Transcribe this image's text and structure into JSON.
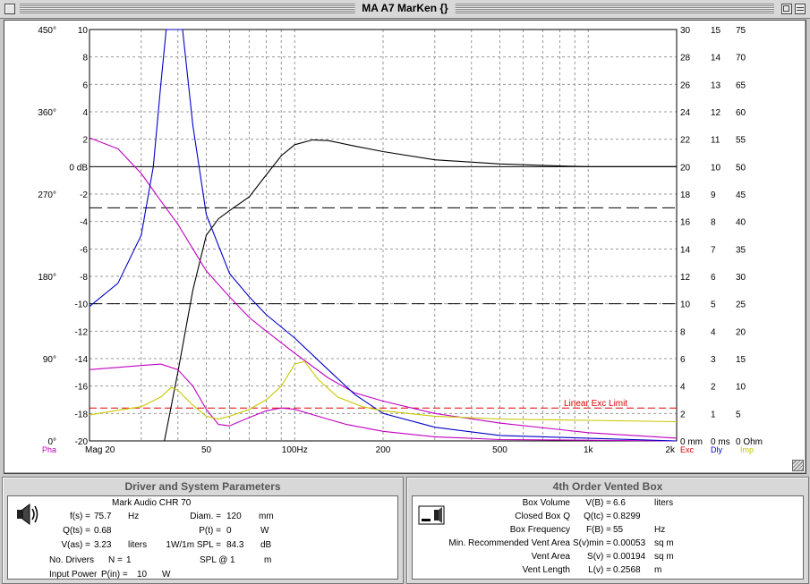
{
  "window": {
    "title": "MA A7 MarKen {}"
  },
  "colors": {
    "phase": "#c000c0",
    "excursion": "#d00000",
    "delay": "#0000c8",
    "impedance": "#c8c800",
    "response": "#000000",
    "limit": "#e00000"
  },
  "graph": {
    "left_ticks": [
      {
        "label": "10",
        "ylevel": 10
      },
      {
        "label": "8",
        "ylevel": 8
      },
      {
        "label": "6",
        "ylevel": 6
      },
      {
        "label": "4",
        "ylevel": 4
      },
      {
        "label": "2",
        "ylevel": 2
      },
      {
        "label": "0 dB",
        "ylevel": 0
      },
      {
        "label": "-2",
        "ylevel": -2
      },
      {
        "label": "-4",
        "ylevel": -4
      },
      {
        "label": "-6",
        "ylevel": -6
      },
      {
        "label": "-8",
        "ylevel": -8
      },
      {
        "label": "-10",
        "ylevel": -10
      },
      {
        "label": "-12",
        "ylevel": -12
      },
      {
        "label": "-14",
        "ylevel": -14
      },
      {
        "label": "-16",
        "ylevel": -16
      },
      {
        "label": "-18",
        "ylevel": -18
      },
      {
        "label": "-20",
        "ylevel": -20
      }
    ],
    "phase_ticks": [
      {
        "label": "450°",
        "ylevel": 10
      },
      {
        "label": "360°",
        "ylevel": 4
      },
      {
        "label": "270°",
        "ylevel": -2
      },
      {
        "label": "180°",
        "ylevel": -8
      },
      {
        "label": "90°",
        "ylevel": -14
      },
      {
        "label": "0°",
        "ylevel": -20
      }
    ],
    "right_col1": [
      {
        "label": "30",
        "ylevel": 10
      },
      {
        "label": "28",
        "ylevel": 8
      },
      {
        "label": "26",
        "ylevel": 6
      },
      {
        "label": "24",
        "ylevel": 4
      },
      {
        "label": "22",
        "ylevel": 2
      },
      {
        "label": "20",
        "ylevel": 0
      },
      {
        "label": "18",
        "ylevel": -2
      },
      {
        "label": "16",
        "ylevel": -4
      },
      {
        "label": "14",
        "ylevel": -6
      },
      {
        "label": "12",
        "ylevel": -8
      },
      {
        "label": "10",
        "ylevel": -10
      },
      {
        "label": "8",
        "ylevel": -12
      },
      {
        "label": "6",
        "ylevel": -14
      },
      {
        "label": "4",
        "ylevel": -16
      },
      {
        "label": "2",
        "ylevel": -18
      },
      {
        "label": "0 mm",
        "ylevel": -20
      }
    ],
    "right_col2": [
      {
        "label": "15",
        "ylevel": 10
      },
      {
        "label": "14",
        "ylevel": 8
      },
      {
        "label": "13",
        "ylevel": 6
      },
      {
        "label": "12",
        "ylevel": 4
      },
      {
        "label": "11",
        "ylevel": 2
      },
      {
        "label": "10",
        "ylevel": 0
      },
      {
        "label": "9",
        "ylevel": -2
      },
      {
        "label": "8",
        "ylevel": -4
      },
      {
        "label": "7",
        "ylevel": -6
      },
      {
        "label": "6",
        "ylevel": -8
      },
      {
        "label": "5",
        "ylevel": -10
      },
      {
        "label": "4",
        "ylevel": -12
      },
      {
        "label": "3",
        "ylevel": -14
      },
      {
        "label": "2",
        "ylevel": -16
      },
      {
        "label": "1",
        "ylevel": -18
      },
      {
        "label": "0 ms",
        "ylevel": -20
      }
    ],
    "right_col3": [
      {
        "label": "75",
        "ylevel": 10
      },
      {
        "label": "70",
        "ylevel": 8
      },
      {
        "label": "65",
        "ylevel": 6
      },
      {
        "label": "60",
        "ylevel": 4
      },
      {
        "label": "55",
        "ylevel": 2
      },
      {
        "label": "50",
        "ylevel": 0
      },
      {
        "label": "45",
        "ylevel": -2
      },
      {
        "label": "40",
        "ylevel": -4
      },
      {
        "label": "35",
        "ylevel": -6
      },
      {
        "label": "30",
        "ylevel": -8
      },
      {
        "label": "25",
        "ylevel": -10
      },
      {
        "label": "20",
        "ylevel": -12
      },
      {
        "label": "15",
        "ylevel": -14
      },
      {
        "label": "10",
        "ylevel": -16
      },
      {
        "label": "5",
        "ylevel": -18
      },
      {
        "label": "0 Ohm",
        "ylevel": -20
      }
    ],
    "x_ticks": [
      {
        "label": "Mag 20",
        "freq": 20
      },
      {
        "label": "50",
        "freq": 50
      },
      {
        "label": "100Hz",
        "freq": 100
      },
      {
        "label": "200",
        "freq": 200
      },
      {
        "label": "500",
        "freq": 500
      },
      {
        "label": "1k",
        "freq": 1000
      },
      {
        "label": "2k",
        "freq": 2000
      }
    ],
    "x_range": [
      20,
      2000
    ],
    "y_range": [
      -20,
      10
    ],
    "grid_freqs": [
      30,
      40,
      50,
      60,
      70,
      80,
      90,
      100,
      200,
      300,
      400,
      500,
      600,
      700,
      800,
      900,
      1000
    ],
    "legend": {
      "pha": "Pha",
      "exc": "Exc",
      "dly": "Dly",
      "imp": "Imp"
    },
    "limit_label": "Linear Exc Limit",
    "limit_level": -17.6,
    "dashed_levels": [
      -3,
      -10
    ]
  },
  "chart_data": {
    "type": "line",
    "x_scale": "log",
    "xlim": [
      20,
      2000
    ],
    "ylim": [
      -20,
      10
    ],
    "series": [
      {
        "name": "Mag",
        "color": "#000000",
        "points": [
          [
            36,
            -20
          ],
          [
            40,
            -15
          ],
          [
            45,
            -9
          ],
          [
            50,
            -5
          ],
          [
            55,
            -3.8
          ],
          [
            60,
            -3.2
          ],
          [
            70,
            -2.2
          ],
          [
            80,
            -0.6
          ],
          [
            90,
            0.8
          ],
          [
            100,
            1.6
          ],
          [
            115,
            1.95
          ],
          [
            130,
            1.9
          ],
          [
            160,
            1.5
          ],
          [
            200,
            1.1
          ],
          [
            300,
            0.5
          ],
          [
            500,
            0.2
          ],
          [
            800,
            0.05
          ],
          [
            1000,
            0
          ],
          [
            2000,
            0
          ]
        ]
      },
      {
        "name": "Pha",
        "color": "#c000c0",
        "points": [
          [
            20,
            2.1
          ],
          [
            25,
            1.3
          ],
          [
            30,
            -0.5
          ],
          [
            35,
            -2.5
          ],
          [
            40,
            -4.2
          ],
          [
            45,
            -6
          ],
          [
            50,
            -7.6
          ],
          [
            60,
            -9.5
          ],
          [
            70,
            -11
          ],
          [
            80,
            -12
          ],
          [
            100,
            -13.6
          ],
          [
            130,
            -15.4
          ],
          [
            160,
            -16.5
          ],
          [
            200,
            -17.1
          ],
          [
            300,
            -18
          ],
          [
            500,
            -18.7
          ],
          [
            1000,
            -19.4
          ],
          [
            2000,
            -19.8
          ]
        ]
      },
      {
        "name": "Exc",
        "color": "#c000c0",
        "points": [
          [
            20,
            -14.8
          ],
          [
            30,
            -14.5
          ],
          [
            35,
            -14.4
          ],
          [
            40,
            -14.8
          ],
          [
            45,
            -16
          ],
          [
            50,
            -17.7
          ],
          [
            55,
            -18.8
          ],
          [
            60,
            -18.9
          ],
          [
            70,
            -18.3
          ],
          [
            80,
            -17.8
          ],
          [
            90,
            -17.6
          ],
          [
            100,
            -17.7
          ],
          [
            120,
            -18.2
          ],
          [
            150,
            -18.8
          ],
          [
            200,
            -19.3
          ],
          [
            300,
            -19.7
          ],
          [
            500,
            -19.9
          ],
          [
            2000,
            -20
          ]
        ]
      },
      {
        "name": "Dly",
        "color": "#0000c8",
        "points": [
          [
            20,
            -10.2
          ],
          [
            25,
            -8.5
          ],
          [
            30,
            -5
          ],
          [
            33,
            0
          ],
          [
            35,
            6
          ],
          [
            36.5,
            10
          ],
          [
            41.5,
            10
          ],
          [
            45,
            3
          ],
          [
            50,
            -3.5
          ],
          [
            60,
            -7.8
          ],
          [
            70,
            -9.5
          ],
          [
            80,
            -10.8
          ],
          [
            100,
            -12.5
          ],
          [
            130,
            -14.8
          ],
          [
            160,
            -16.6
          ],
          [
            200,
            -18
          ],
          [
            300,
            -19
          ],
          [
            500,
            -19.6
          ],
          [
            2000,
            -20
          ]
        ]
      },
      {
        "name": "Imp",
        "color": "#c8c800",
        "points": [
          [
            20,
            -18.1
          ],
          [
            30,
            -17.5
          ],
          [
            35,
            -16.8
          ],
          [
            38,
            -16.1
          ],
          [
            40,
            -16.3
          ],
          [
            45,
            -17.4
          ],
          [
            50,
            -18.2
          ],
          [
            55,
            -18.4
          ],
          [
            60,
            -18.2
          ],
          [
            70,
            -17.7
          ],
          [
            80,
            -17
          ],
          [
            90,
            -16
          ],
          [
            100,
            -14.4
          ],
          [
            108,
            -14.2
          ],
          [
            120,
            -15.5
          ],
          [
            140,
            -16.8
          ],
          [
            170,
            -17.5
          ],
          [
            200,
            -17.8
          ],
          [
            300,
            -18.2
          ],
          [
            500,
            -18.4
          ],
          [
            1000,
            -18.5
          ],
          [
            2000,
            -18.6
          ]
        ]
      }
    ]
  },
  "driver_panel": {
    "title": "Driver and System Parameters",
    "driver_name": "Mark Audio CHR 70",
    "fs_label": "f(s) =",
    "fs_value": "75.7",
    "fs_unit": "Hz",
    "qs_label": "Q(ts) =",
    "qs_value": "0.68",
    "vas_label": "V(as) =",
    "vas_value": "3.23",
    "vas_unit": "liters",
    "diam_label": "Diam. =",
    "diam_value": "120",
    "diam_unit": "mm",
    "pt_label": "P(t) =",
    "pt_value": "0",
    "pt_unit": "W",
    "spl_label": "1W/1m SPL =",
    "spl_value": "84.3",
    "spl_unit": "dB",
    "nd_label": "No. Drivers",
    "nd_eq": "N =",
    "nd_value": "1",
    "splat_label": "SPL @",
    "splat_value": "1",
    "splat_unit": "m",
    "ip_label": "Input Power",
    "ip_eq": "P(in) =",
    "ip_value": "10",
    "ip_unit": "W"
  },
  "box_panel": {
    "title": "4th Order Vented Box",
    "rows": [
      {
        "label": "Box Volume",
        "sym": "V(B) =",
        "value": "6.6",
        "unit": "liters"
      },
      {
        "label": "Closed Box Q",
        "sym": "Q(tc) =",
        "value": "0.8299",
        "unit": ""
      },
      {
        "label": "Box Frequency",
        "sym": "F(B) =",
        "value": "55",
        "unit": "Hz"
      },
      {
        "label": "Min. Recommended Vent Area",
        "sym": "S(v)min =",
        "value": "0.00053",
        "unit": "sq m"
      },
      {
        "label": "Vent Area",
        "sym": "S(v) =",
        "value": "0.00194",
        "unit": "sq m"
      },
      {
        "label": "Vent Length",
        "sym": "L(v) =",
        "value": "0.2568",
        "unit": "m"
      }
    ]
  }
}
